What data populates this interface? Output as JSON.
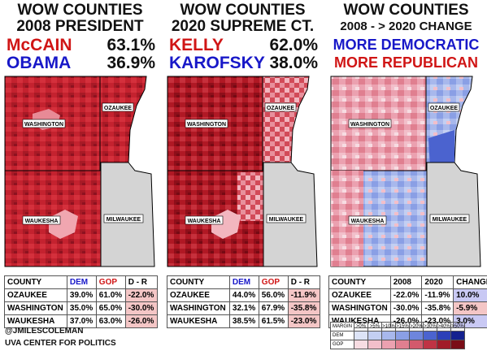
{
  "panels": [
    {
      "title1": "WOW COUNTIES",
      "title2": "2008 PRESIDENT",
      "gop_name": "McCAIN",
      "gop_pct": "63.1%",
      "dem_name": "OBAMA",
      "dem_pct": "36.9%",
      "table": {
        "headers": [
          "COUNTY",
          "DEM",
          "GOP",
          "D - R"
        ],
        "rows": [
          [
            "OZAUKEE",
            "39.0%",
            "61.0%",
            "-22.0%"
          ],
          [
            "WASHINGTON",
            "35.0%",
            "65.0%",
            "-30.0%"
          ],
          [
            "WAUKESHA",
            "37.0%",
            "63.0%",
            "-26.0%"
          ]
        ]
      }
    },
    {
      "title1": "WOW COUNTIES",
      "title2": "2020 SUPREME CT.",
      "gop_name": "KELLY",
      "gop_pct": "62.0%",
      "dem_name": "KAROFSKY",
      "dem_pct": "38.0%",
      "table": {
        "headers": [
          "COUNTY",
          "DEM",
          "GOP",
          "D - R"
        ],
        "rows": [
          [
            "OZAUKEE",
            "44.0%",
            "56.0%",
            "-11.9%"
          ],
          [
            "WASHINGTON",
            "32.1%",
            "67.9%",
            "-35.8%"
          ],
          [
            "WAUKESHA",
            "38.5%",
            "61.5%",
            "-23.0%"
          ]
        ]
      }
    },
    {
      "title1": "WOW COUNTIES",
      "title2": "2008 - > 2020 CHANGE",
      "line1": "MORE DEMOCRATIC",
      "line2": "MORE REPUBLICAN",
      "table": {
        "headers": [
          "COUNTY",
          "2008",
          "2020",
          "CHANGE"
        ],
        "rows": [
          [
            "OZAUKEE",
            "-22.0%",
            "-11.9%",
            "10.0%"
          ],
          [
            "WASHINGTON",
            "-30.0%",
            "-35.8%",
            "-5.9%"
          ],
          [
            "WAUKESHA",
            "-26.0%",
            "-23.0%",
            "3.0%"
          ]
        ]
      }
    }
  ],
  "map_labels": {
    "washington": "WASHINGTON",
    "ozaukee": "OZAUKEE",
    "waukesha": "WAUKESHA",
    "milwaukee": "MILWAUKEE"
  },
  "credits": {
    "author": "@JMILESCOLEMAN",
    "org": "UVA CENTER FOR POLITICS"
  },
  "legend": {
    "header": [
      "MARGIN",
      ">0%",
      ">5%",
      ">10%",
      ">15%",
      ">20%",
      ">30%",
      ">40%",
      ">50%"
    ],
    "dem_label": "DEM",
    "gop_label": "GOP",
    "dem_colors": [
      "#dde4f7",
      "#c3cff2",
      "#a8b8ec",
      "#8a9fe5",
      "#6e85dc",
      "#4b63cf",
      "#2c40b8",
      "#14218f"
    ],
    "gop_colors": [
      "#f7dce2",
      "#f2bfca",
      "#eba1b0",
      "#e07f90",
      "#d25a6c",
      "#bf3344",
      "#a11b29",
      "#7a0d17"
    ]
  },
  "colors": {
    "gop_text": "#d01515",
    "dem_text": "#1818c8",
    "milwaukee_fill": "#d4d4d4"
  }
}
